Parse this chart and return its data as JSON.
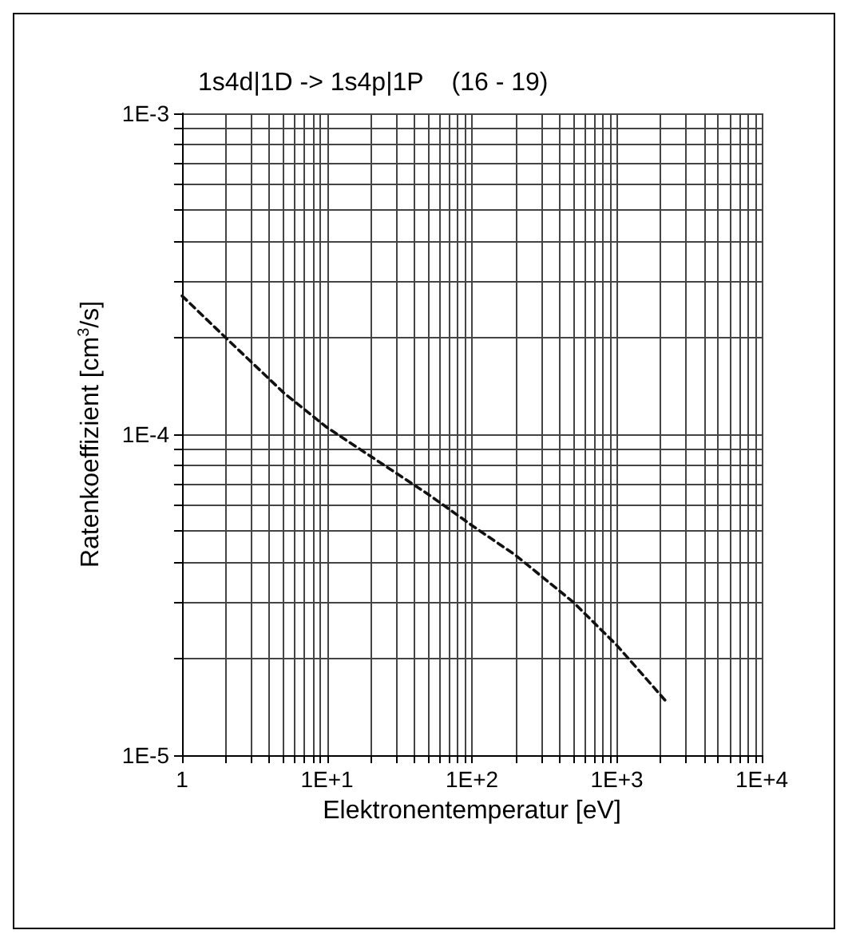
{
  "chart_data": {
    "type": "line",
    "title": "1s4d|1D -> 1s4p|1P    (16 - 19)",
    "xlabel": "Elektronentemperatur [eV]",
    "ylabel": "Ratenkoeffizient [cm$^{3}$/s]",
    "log": "xy",
    "grid": true,
    "marker": "none",
    "line_style": "dashed",
    "x": [
      1,
      2,
      5,
      10,
      50,
      100,
      200,
      500,
      1000,
      2250
    ],
    "series": [
      {
        "color": "#111111",
        "values": [
          0.00027,
          0.0002,
          0.000135,
          0.000105,
          6.5e-05,
          5.2e-05,
          4.2e-05,
          3e-05,
          2.2e-05,
          1.45e-05
        ]
      }
    ],
    "xlim": [
      1,
      10000
    ],
    "ylim": [
      1e-05,
      0.001
    ],
    "xticks": [
      {
        "value": 1,
        "label": "1"
      },
      {
        "value": 2,
        "label": null
      },
      {
        "value": 3,
        "label": null
      },
      {
        "value": 4,
        "label": null
      },
      {
        "value": 5,
        "label": null
      },
      {
        "value": 6,
        "label": null
      },
      {
        "value": 7,
        "label": null
      },
      {
        "value": 8,
        "label": null
      },
      {
        "value": 9,
        "label": null
      },
      {
        "value": 10,
        "label": "1E+1"
      },
      {
        "value": 20,
        "label": null
      },
      {
        "value": 30,
        "label": null
      },
      {
        "value": 40,
        "label": null
      },
      {
        "value": 50,
        "label": null
      },
      {
        "value": 60,
        "label": null
      },
      {
        "value": 70,
        "label": null
      },
      {
        "value": 80,
        "label": null
      },
      {
        "value": 90,
        "label": null
      },
      {
        "value": 100,
        "label": "1E+2"
      },
      {
        "value": 200,
        "label": null
      },
      {
        "value": 300,
        "label": null
      },
      {
        "value": 400,
        "label": null
      },
      {
        "value": 500,
        "label": null
      },
      {
        "value": 600,
        "label": null
      },
      {
        "value": 700,
        "label": null
      },
      {
        "value": 800,
        "label": null
      },
      {
        "value": 900,
        "label": null
      },
      {
        "value": 1000,
        "label": "1E+3"
      },
      {
        "value": 2000,
        "label": null
      },
      {
        "value": 3000,
        "label": null
      },
      {
        "value": 4000,
        "label": null
      },
      {
        "value": 5000,
        "label": null
      },
      {
        "value": 6000,
        "label": null
      },
      {
        "value": 7000,
        "label": null
      },
      {
        "value": 8000,
        "label": null
      },
      {
        "value": 9000,
        "label": null
      },
      {
        "value": 10000,
        "label": "1E+4"
      }
    ],
    "yticks": [
      {
        "value": 1e-05,
        "label": "1E-5"
      },
      {
        "value": 2e-05,
        "label": null
      },
      {
        "value": 3e-05,
        "label": null
      },
      {
        "value": 4e-05,
        "label": null
      },
      {
        "value": 5e-05,
        "label": null
      },
      {
        "value": 6e-05,
        "label": null
      },
      {
        "value": 7e-05,
        "label": null
      },
      {
        "value": 8e-05,
        "label": null
      },
      {
        "value": 9e-05,
        "label": null
      },
      {
        "value": 0.0001,
        "label": "1E-4"
      },
      {
        "value": 0.0002,
        "label": null
      },
      {
        "value": 0.0003,
        "label": null
      },
      {
        "value": 0.0004,
        "label": null
      },
      {
        "value": 0.0005,
        "label": null
      },
      {
        "value": 0.0006,
        "label": null
      },
      {
        "value": 0.0007,
        "label": null
      },
      {
        "value": 0.0008,
        "label": null
      },
      {
        "value": 0.0009,
        "label": null
      },
      {
        "value": 0.001,
        "label": "1E-3"
      }
    ]
  }
}
